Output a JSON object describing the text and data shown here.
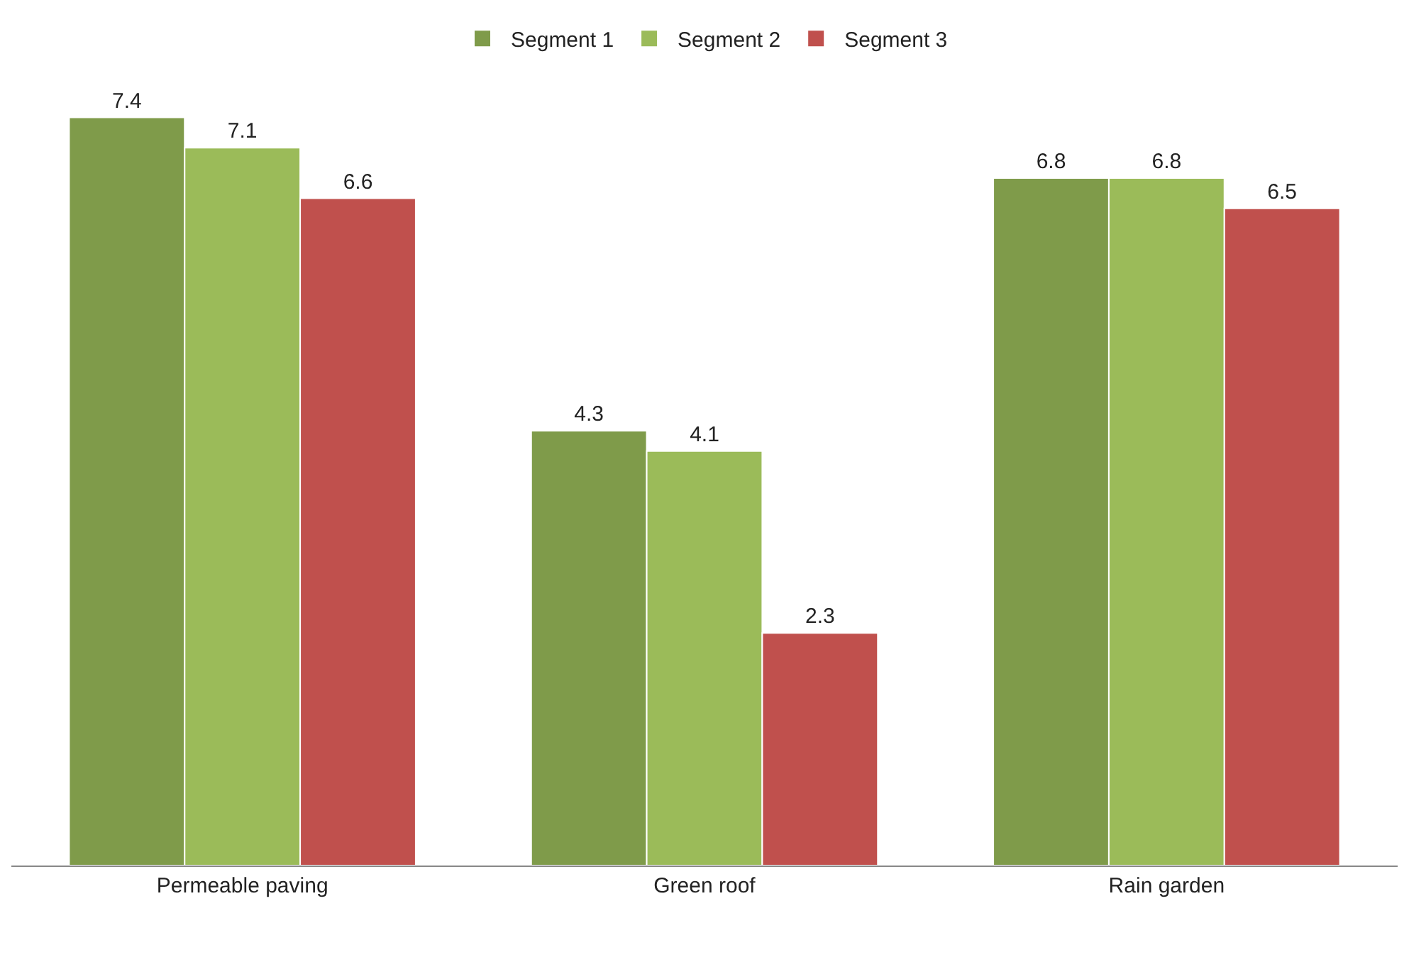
{
  "chart_data": {
    "type": "bar",
    "categories": [
      "Permeable paving",
      "Green roof",
      "Rain garden"
    ],
    "series": [
      {
        "name": "Segment 1",
        "color": "#7f9b4a",
        "values": [
          7.4,
          4.3,
          6.8
        ]
      },
      {
        "name": "Segment 2",
        "color": "#9bbb59",
        "values": [
          7.1,
          4.1,
          6.8
        ]
      },
      {
        "name": "Segment 3",
        "color": "#c0504d",
        "values": [
          6.6,
          2.3,
          6.5
        ]
      }
    ],
    "data_labels": true,
    "legend": "top",
    "tick_labels": "x"
  }
}
